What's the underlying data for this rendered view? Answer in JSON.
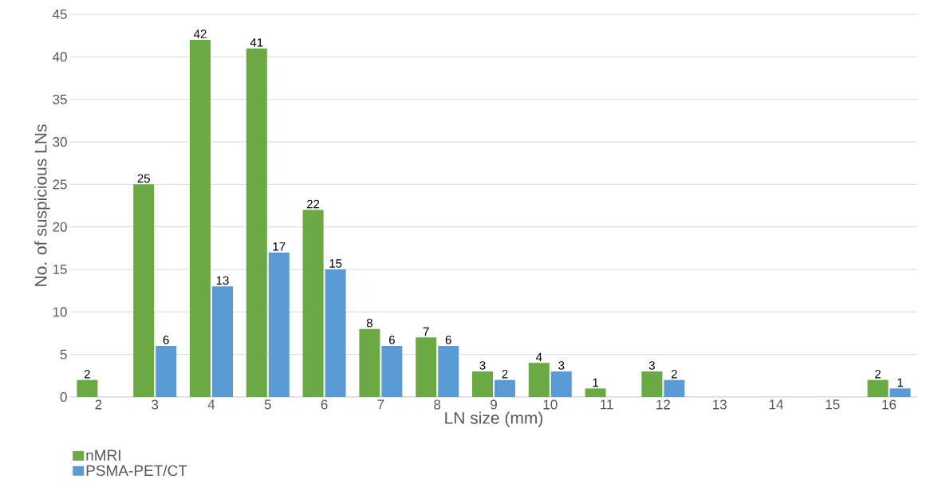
{
  "chart_data": {
    "type": "bar",
    "xlabel": "LN size (mm)",
    "ylabel": "No. of suspicious LNs",
    "categories": [
      "2",
      "3",
      "4",
      "5",
      "6",
      "7",
      "8",
      "9",
      "10",
      "11",
      "12",
      "13",
      "14",
      "15",
      "16"
    ],
    "series": [
      {
        "name": "nMRI",
        "color": "#6aa943",
        "values": [
          2,
          25,
          42,
          41,
          22,
          8,
          7,
          3,
          4,
          1,
          3,
          null,
          null,
          null,
          2
        ]
      },
      {
        "name": "PSMA-PET/CT",
        "color": "#5b9bd5",
        "values": [
          null,
          6,
          13,
          17,
          15,
          6,
          6,
          2,
          3,
          null,
          2,
          null,
          null,
          null,
          1
        ]
      }
    ],
    "ylim": [
      0,
      45
    ],
    "yticks": [
      0,
      5,
      10,
      15,
      20,
      25,
      30,
      35,
      40,
      45
    ],
    "grid": "y",
    "legend": "bottom left",
    "data_labels": true
  }
}
